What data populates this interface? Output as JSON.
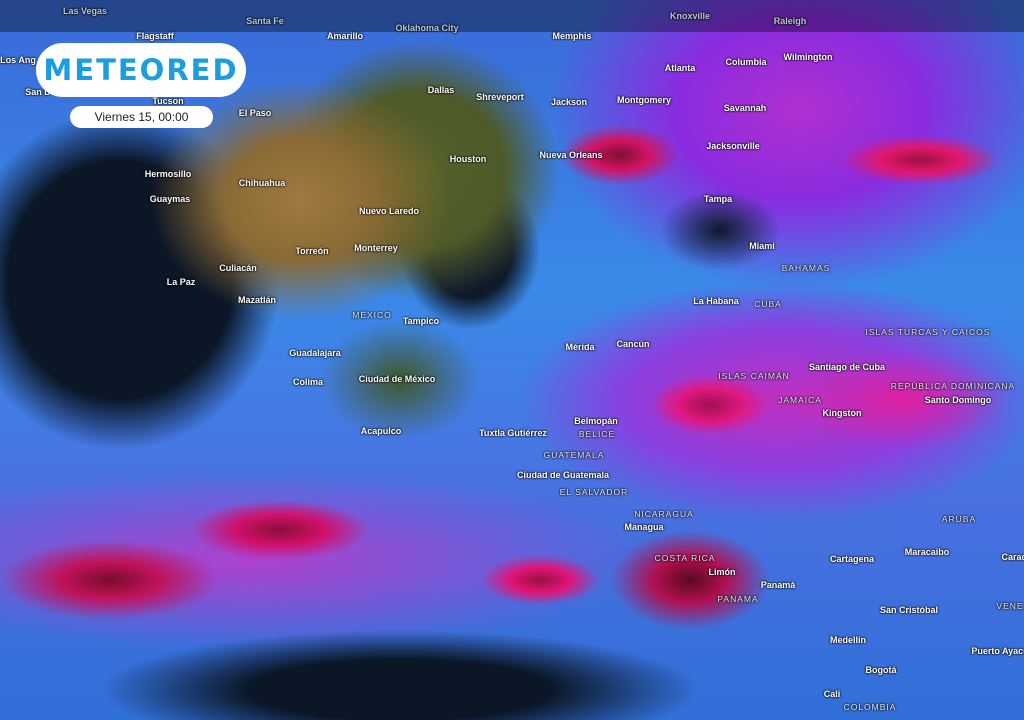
{
  "brand": {
    "logo": "METEORED"
  },
  "time": {
    "label": "Viernes 15, 00:00"
  },
  "labels": {
    "las_vegas": "Las Vegas",
    "santa_fe": "Santa Fe",
    "oklahoma_city": "Oklahoma City",
    "knoxville": "Knoxville",
    "raleigh": "Raleigh",
    "flagstaff": "Flagstaff",
    "amarillo": "Amarillo",
    "memphis": "Memphis",
    "los_angeles": "Los Ang",
    "atlanta": "Atlanta",
    "columbia": "Columbia",
    "wilmington": "Wilmington",
    "san_diego": "San D",
    "dallas": "Dallas",
    "shreveport": "Shreveport",
    "tucson": "Tucson",
    "el_paso": "El Paso",
    "jackson": "Jackson",
    "montgomery": "Montgomery",
    "savannah": "Savannah",
    "jacksonville": "Jacksonville",
    "houston": "Houston",
    "nueva_orleans": "Nueva Orleans",
    "hermosillo": "Hermosillo",
    "chihuahua": "Chihuahua",
    "guaymas": "Guaymas",
    "tampa": "Tampa",
    "nuevo_laredo": "Nuevo Laredo",
    "miami": "Miami",
    "monterrey": "Monterrey",
    "torreon": "Torreón",
    "bahamas": "BAHAMAS",
    "culiacan": "Culiacán",
    "la_paz": "La Paz",
    "la_habana": "La Habana",
    "cuba": "CUBA",
    "mazatlan": "Mazatlán",
    "mexico": "MÉXICO",
    "tampico": "Tampico",
    "turcas": "ISLAS TURCAS Y CAICOS",
    "merida": "Mérida",
    "cancun": "Cancún",
    "guadalajara": "Guadalajara",
    "santiago_cuba": "Santiago de Cuba",
    "colima": "Colima",
    "cdmx": "Ciudad de México",
    "caiman": "ISLAS CAIMÁN",
    "rep_dominicana": "REPÚBLICA DOMINICANA",
    "santo_domingo": "Santo Domingo",
    "jamaica": "JAMAICA",
    "kingston": "Kingston",
    "acapulco": "Acapulco",
    "belmopan": "Belmopán",
    "belice": "BELICE",
    "tuxtla": "Tuxtla Gutiérrez",
    "guatemala": "GUATEMALA",
    "cd_guatemala": "Ciudad de Guatemala",
    "el_salvador": "EL SALVADOR",
    "nicaragua": "NICARAGUA",
    "managua": "Managua",
    "aruba": "ARUBA",
    "maracaibo": "Maracaibo",
    "cartagena": "Cartagena",
    "caracas": "Carac",
    "costa_rica": "COSTA RICA",
    "limon": "Limón",
    "panama_city": "Panamá",
    "panama": "PANAMA",
    "venezuela": "VENE",
    "san_cristobal": "San Cristóbal",
    "medellin": "Medellín",
    "puerto_ayacucho": "Puerto Ayacu",
    "bogota": "Bogotá",
    "cali": "Cali",
    "colombia": "COLOMBIA"
  },
  "colors": {
    "brand": "#1a9ee0",
    "precip_low": "#3a8ae8",
    "precip_mid": "#d01478",
    "precip_high": "#7a0d2e"
  }
}
